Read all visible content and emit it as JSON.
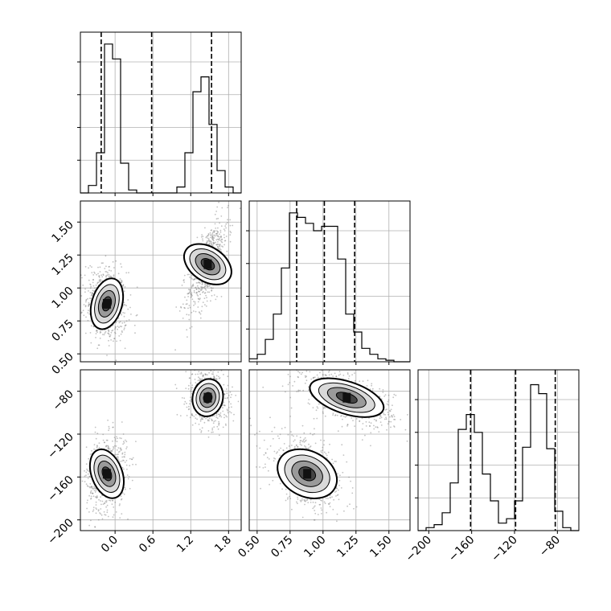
{
  "chart_data": {
    "type": "corner",
    "title": "",
    "grid": true,
    "parameters": [
      {
        "index": 0,
        "range": [
          -0.55,
          2.0
        ],
        "ticks": [
          0.0,
          0.6,
          1.2,
          1.8
        ],
        "tick_labels": [
          "0.0",
          "0.6",
          "1.2",
          "1.8"
        ],
        "quantiles": [
          -0.22,
          0.58,
          1.53
        ]
      },
      {
        "index": 1,
        "range": [
          0.44,
          1.66
        ],
        "ticks": [
          0.5,
          0.75,
          1.0,
          1.25,
          1.5
        ],
        "tick_labels": [
          "0.50",
          "0.75",
          "1.00",
          "1.25",
          "1.50"
        ],
        "quantiles": [
          0.8,
          1.01,
          1.24
        ]
      },
      {
        "index": 2,
        "range": [
          -210,
          -60
        ],
        "ticks": [
          -200,
          -160,
          -120,
          -80
        ],
        "tick_labels": [
          "−200",
          "−160",
          "−120",
          "−80"
        ],
        "quantiles": [
          -161,
          -119,
          -82
        ]
      }
    ],
    "marginals": [
      {
        "param": 0,
        "bin_edges_start": -0.55,
        "bin_width": 0.1275,
        "counts": [
          0,
          0.05,
          0.27,
          1.0,
          0.9,
          0.2,
          0.02,
          0,
          0,
          0,
          0,
          0,
          0.04,
          0.27,
          0.68,
          0.78,
          0.46,
          0.15,
          0.04,
          0
        ]
      },
      {
        "param": 1,
        "bin_edges_start": 0.44,
        "bin_width": 0.061,
        "counts": [
          0.02,
          0.05,
          0.15,
          0.32,
          0.63,
          1.0,
          0.97,
          0.93,
          0.88,
          0.91,
          0.91,
          0.69,
          0.32,
          0.2,
          0.09,
          0.05,
          0.02,
          0.01,
          0,
          0
        ]
      },
      {
        "param": 2,
        "bin_edges_start": -210,
        "bin_width": 7.5,
        "counts": [
          0,
          0.02,
          0.04,
          0.12,
          0.32,
          0.68,
          0.78,
          0.66,
          0.38,
          0.2,
          0.05,
          0.08,
          0.2,
          0.56,
          0.98,
          0.92,
          0.55,
          0.13,
          0.02,
          0
        ]
      }
    ],
    "joint": [
      {
        "x_param": 0,
        "y_param": 1,
        "modes": [
          {
            "cx": -0.13,
            "cy": 0.88,
            "sx": 0.1,
            "sy": 0.09,
            "rho": -0.15,
            "weight": 0.5
          },
          {
            "cx": 1.47,
            "cy": 1.18,
            "sx": 0.1,
            "sy": 0.11,
            "rho": 0.65,
            "weight": 0.5
          }
        ]
      },
      {
        "x_param": 0,
        "y_param": 2,
        "modes": [
          {
            "cx": -0.13,
            "cy": -157,
            "sx": 0.1,
            "sy": 11,
            "rho": 0.2,
            "weight": 0.5
          },
          {
            "cx": 1.47,
            "cy": -86,
            "sx": 0.1,
            "sy": 8,
            "rho": -0.15,
            "weight": 0.5
          }
        ]
      },
      {
        "x_param": 1,
        "y_param": 2,
        "modes": [
          {
            "cx": 0.88,
            "cy": -157,
            "sx": 0.09,
            "sy": 11,
            "rho": -0.5,
            "weight": 0.5
          },
          {
            "cx": 1.18,
            "cy": -86,
            "sx": 0.11,
            "sy": 8,
            "rho": -0.55,
            "weight": 0.5
          }
        ]
      }
    ]
  }
}
